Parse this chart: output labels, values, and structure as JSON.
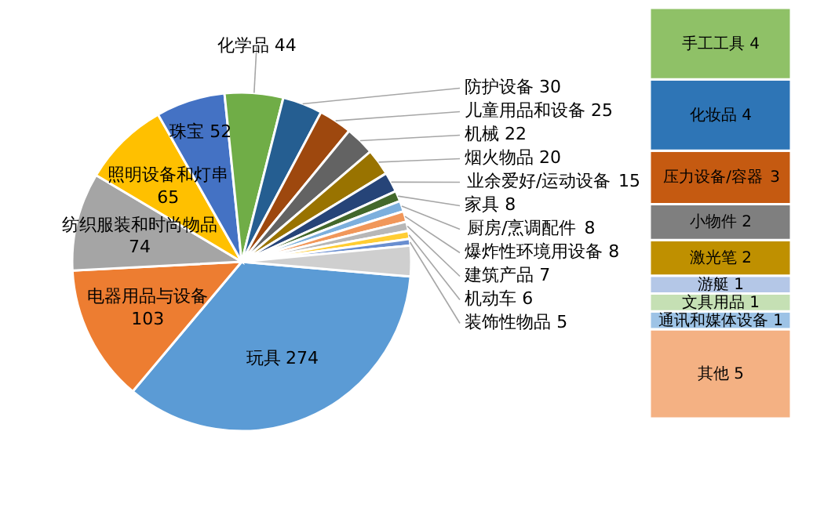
{
  "chart_data": [
    {
      "type": "pie",
      "categories": [
        "玩具",
        "电器用品与设备",
        "纺织服装和时尚物品",
        "照明设备和灯串",
        "珠宝",
        "化学品",
        "防护设备",
        "儿童用品和设备",
        "机械",
        "烟火物品",
        "业余爱好/运动设备",
        "家具",
        "厨房/烹调配件",
        "爆炸性环境用设备",
        "建筑产品",
        "机动车",
        "装饰性物品",
        null
      ],
      "values": [
        274,
        103,
        74,
        65,
        52,
        44,
        30,
        25,
        22,
        20,
        15,
        8,
        8,
        8,
        7,
        6,
        5,
        23
      ],
      "colors": [
        "#5b9bd5",
        "#ed7d31",
        "#a5a5a5",
        "#ffc000",
        "#4472c4",
        "#70ad47",
        "#255e91",
        "#9e480e",
        "#636363",
        "#997300",
        "#264478",
        "#43682b",
        "#7cafdd",
        "#f1975a",
        "#b7b7b7",
        "#ffcd33",
        "#698ed0",
        "#cfcfcf"
      ],
      "value_labels": [
        "274",
        "103",
        "74",
        "65",
        "52",
        "44",
        "30",
        "25",
        "22",
        "20",
        "15",
        "8",
        "8",
        "8",
        "7",
        "6",
        "5",
        null
      ],
      "legend": false
    },
    {
      "type": "bar",
      "stacked": true,
      "categories": [
        null
      ],
      "data_labels": true,
      "legend": false,
      "tick_labels": false,
      "series": [
        {
          "name": "其他",
          "color": "#f4b183",
          "values": [
            5
          ]
        },
        {
          "name": "通讯和媒体设备",
          "color": "#9dc3e6",
          "values": [
            1
          ]
        },
        {
          "name": "文具用品",
          "color": "#c5e0b4",
          "values": [
            1
          ]
        },
        {
          "name": "游艇",
          "color": "#b4c7e7",
          "values": [
            1
          ]
        },
        {
          "name": "激光笔",
          "color": "#bf9000",
          "values": [
            2
          ]
        },
        {
          "name": "小物件",
          "color": "#7f7f7f",
          "values": [
            2
          ]
        },
        {
          "name": "压力设备/容器",
          "color": "#c55a11",
          "values": [
            3
          ]
        },
        {
          "name": "化妆品",
          "color": "#2e75b6",
          "values": [
            4
          ]
        },
        {
          "name": "手工工具",
          "color": "#8fc167",
          "values": [
            4
          ]
        }
      ]
    }
  ]
}
